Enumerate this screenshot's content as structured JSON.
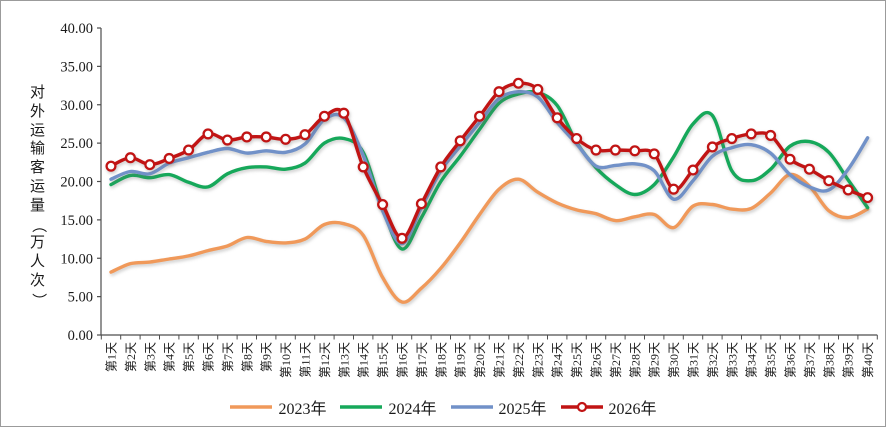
{
  "chart_data": {
    "type": "line",
    "title": "",
    "ylabel": "对外运输客运量（万人次）",
    "xlabel": "",
    "ylim": [
      0,
      40
    ],
    "ytick_labels": [
      "0.00",
      "5.00",
      "10.00",
      "15.00",
      "20.00",
      "25.00",
      "30.00",
      "35.00",
      "40.00"
    ],
    "grid": false,
    "legend_position": "bottom",
    "categories": [
      "第1天",
      "第2天",
      "第3天",
      "第4天",
      "第5天",
      "第6天",
      "第7天",
      "第8天",
      "第9天",
      "第10天",
      "第11天",
      "第12天",
      "第13天",
      "第14天",
      "第15天",
      "第16天",
      "第17天",
      "第18天",
      "第19天",
      "第20天",
      "第21天",
      "第22天",
      "第23天",
      "第24天",
      "第25天",
      "第26天",
      "第27天",
      "第28天",
      "第29天",
      "第30天",
      "第31天",
      "第32天",
      "第33天",
      "第34天",
      "第35天",
      "第36天",
      "第37天",
      "第38天",
      "第39天",
      "第40天"
    ],
    "series": [
      {
        "name": "2023年",
        "color": "#F0995A",
        "marker": "none",
        "values": [
          8.2,
          9.3,
          9.5,
          9.9,
          10.3,
          11.0,
          11.6,
          12.7,
          12.2,
          12.0,
          12.5,
          14.4,
          14.5,
          13.0,
          7.5,
          4.3,
          6.1,
          8.7,
          12.0,
          15.7,
          19.0,
          20.3,
          18.6,
          17.2,
          16.3,
          15.8,
          14.9,
          15.4,
          15.7,
          14.0,
          16.8,
          17.0,
          16.4,
          16.5,
          18.5,
          20.9,
          19.4,
          16.2,
          15.3,
          16.4
        ]
      },
      {
        "name": "2024年",
        "color": "#16A85A",
        "marker": "none",
        "values": [
          19.6,
          20.8,
          20.5,
          20.9,
          19.9,
          19.3,
          21.0,
          21.8,
          21.9,
          21.6,
          22.4,
          25.0,
          25.6,
          23.8,
          16.5,
          11.2,
          15.3,
          20.0,
          23.3,
          26.8,
          30.2,
          31.4,
          31.6,
          29.9,
          25.1,
          21.8,
          19.6,
          18.3,
          19.6,
          23.2,
          27.5,
          28.6,
          21.4,
          20.1,
          21.6,
          24.6,
          25.2,
          23.8,
          20.2,
          16.6
        ]
      },
      {
        "name": "2025年",
        "color": "#7191C8",
        "marker": "none",
        "values": [
          20.3,
          21.3,
          21.0,
          22.4,
          23.1,
          23.8,
          24.3,
          23.7,
          24.0,
          23.8,
          24.9,
          28.1,
          28.3,
          23.4,
          16.2,
          11.9,
          16.6,
          21.4,
          24.6,
          27.7,
          30.8,
          31.7,
          31.0,
          27.7,
          24.9,
          22.0,
          22.1,
          22.3,
          21.4,
          17.7,
          20.1,
          23.3,
          24.4,
          24.8,
          23.7,
          20.9,
          19.3,
          18.9,
          21.6,
          25.7
        ]
      },
      {
        "name": "2026年",
        "color": "#C11414",
        "marker": "circle",
        "values": [
          22.0,
          23.1,
          22.2,
          23.0,
          24.1,
          26.2,
          25.4,
          25.8,
          25.8,
          25.5,
          26.1,
          28.5,
          28.9,
          21.9,
          17.0,
          12.6,
          17.1,
          21.9,
          25.3,
          28.5,
          31.7,
          32.8,
          32.0,
          28.3,
          25.6,
          24.1,
          24.1,
          24.0,
          23.6,
          19.0,
          21.5,
          24.5,
          25.6,
          26.2,
          26.0,
          22.9,
          21.6,
          20.1,
          18.9,
          17.9
        ]
      }
    ]
  }
}
